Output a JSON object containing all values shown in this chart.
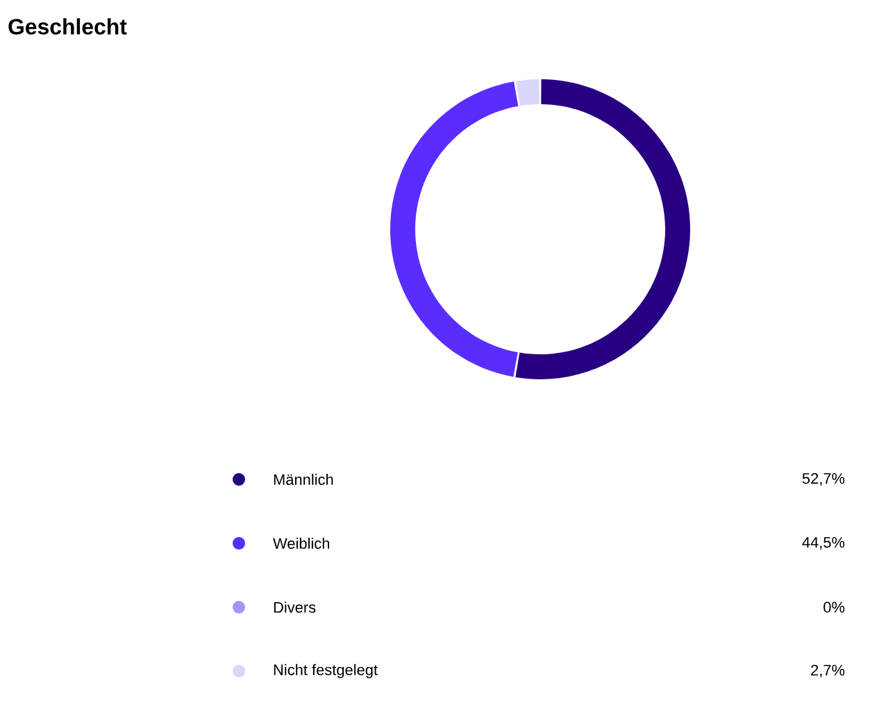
{
  "chart_data": {
    "type": "donut",
    "title": "Geschlecht",
    "categories": [
      "Männlich",
      "Weiblich",
      "Divers",
      "Nicht festgelegt"
    ],
    "values": [
      52.7,
      44.5,
      0,
      2.7
    ],
    "colors": [
      "#280082",
      "#5a2dff",
      "#a396f7",
      "#d8d6fb"
    ],
    "value_labels": [
      "52,7%",
      "44,5%",
      "0%",
      "2,7%"
    ],
    "legend": "bottom"
  }
}
